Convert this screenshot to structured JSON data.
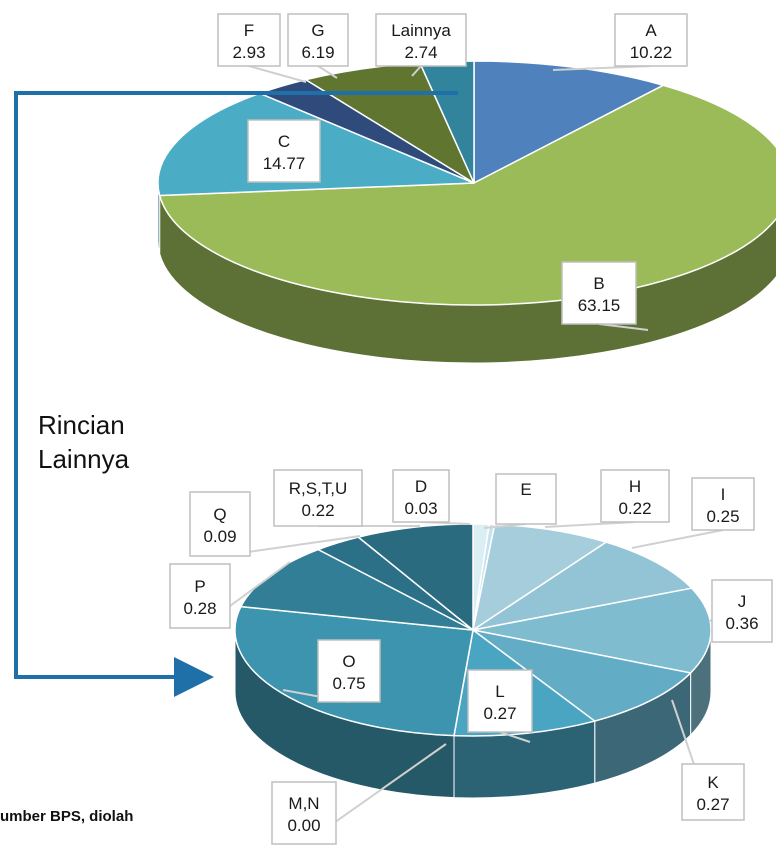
{
  "chart_data": [
    {
      "type": "pie",
      "style": "3d",
      "slices": [
        {
          "label": "A",
          "value": 10.22,
          "color": "#4f81bd"
        },
        {
          "label": "B",
          "value": 63.15,
          "color": "#9bbb59"
        },
        {
          "label": "C",
          "value": 14.77,
          "color": "#4bacc6"
        },
        {
          "label": "F",
          "value": 2.93,
          "color": "#2f4b7c"
        },
        {
          "label": "G",
          "value": 6.19,
          "color": "#5f7530"
        },
        {
          "label": "Lainnya",
          "value": 2.74,
          "color": "#31849b"
        }
      ]
    },
    {
      "type": "pie",
      "style": "3d",
      "slices": [
        {
          "label": "D",
          "value": 0.03,
          "color": "#dbeef4"
        },
        {
          "label": "E",
          "value": 0.01,
          "color": "#c5e3ec"
        },
        {
          "label": "H",
          "value": 0.22,
          "color": "#a5cddb"
        },
        {
          "label": "I",
          "value": 0.25,
          "color": "#92c4d6"
        },
        {
          "label": "J",
          "value": 0.36,
          "color": "#7fbccf"
        },
        {
          "label": "K",
          "value": 0.27,
          "color": "#62acc6"
        },
        {
          "label": "L",
          "value": 0.27,
          "color": "#4aa5c2"
        },
        {
          "label": "M,N",
          "value": 0.0,
          "color": "#2f7d96"
        },
        {
          "label": "O",
          "value": 0.75,
          "color": "#3d94ae"
        },
        {
          "label": "P",
          "value": 0.28,
          "color": "#327e96"
        },
        {
          "label": "Q",
          "value": 0.09,
          "color": "#2c7088"
        },
        {
          "label": "R,S,T,U",
          "value": 0.22,
          "color": "#2a6b80"
        }
      ]
    }
  ],
  "annotation": {
    "line1": "Rincian",
    "line2": "Lainnya"
  },
  "source_note": "umber BPS, diolah"
}
